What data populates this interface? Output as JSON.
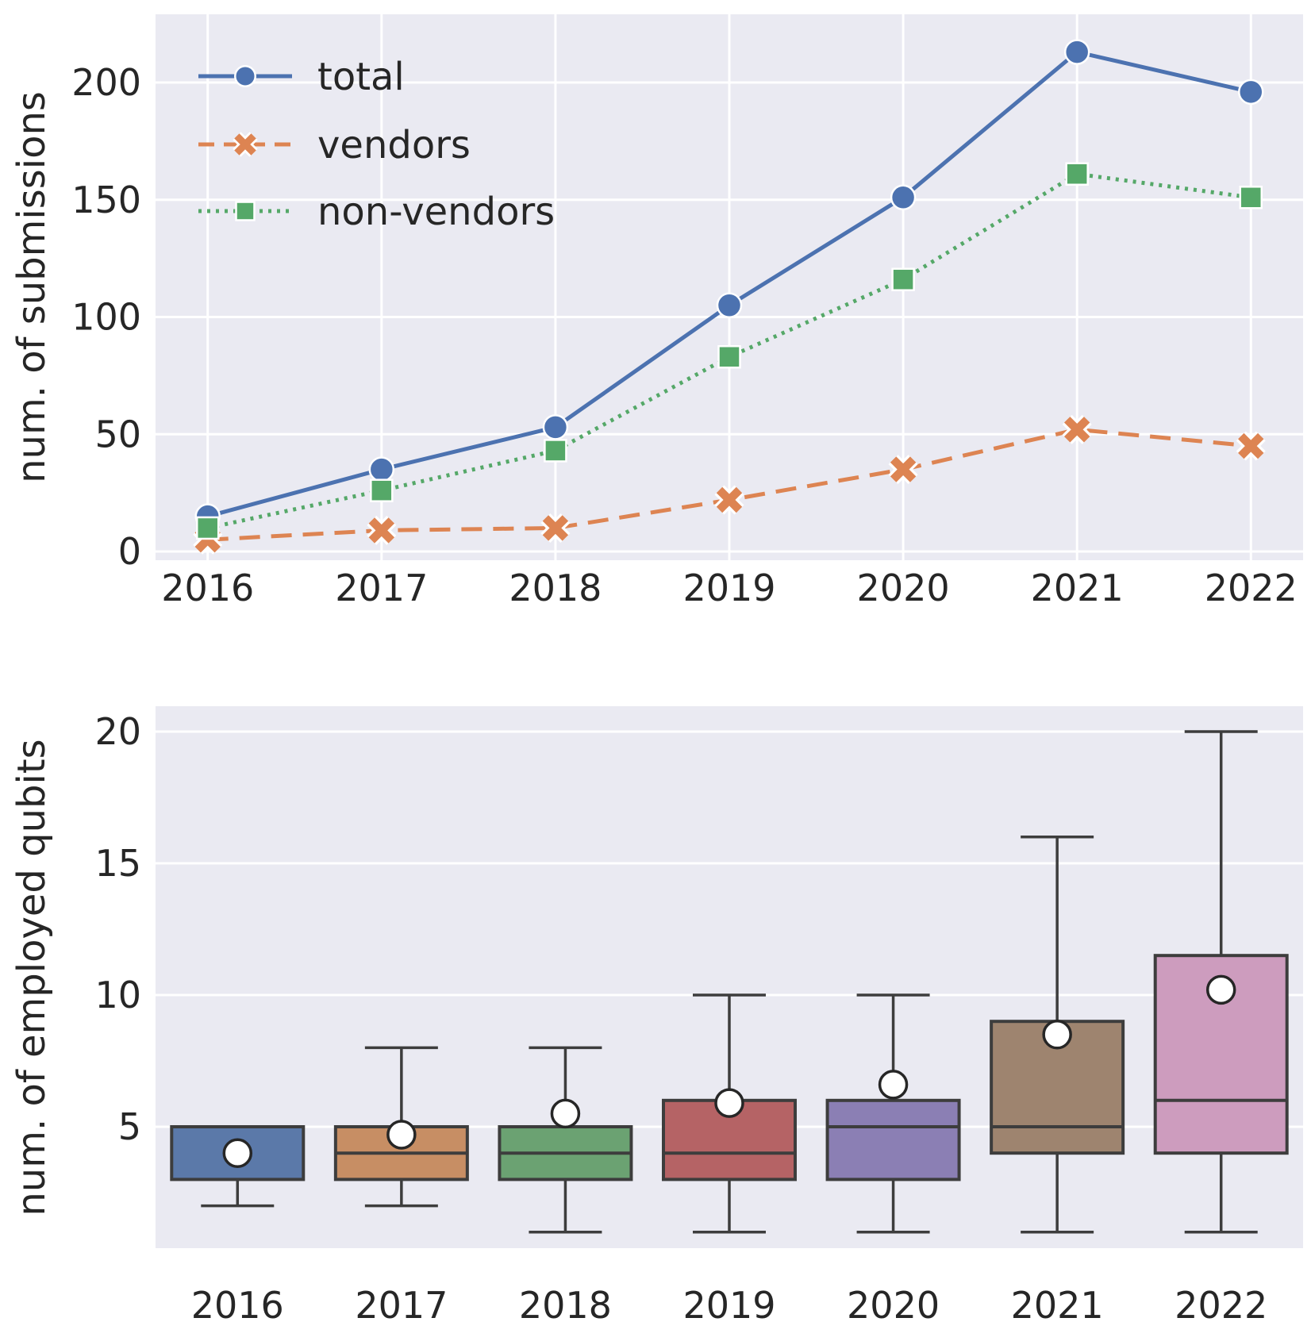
{
  "page": {
    "background": "#ffffff",
    "plot_background": "#eaeaf2",
    "grid_color": "#ffffff",
    "text_color": "#262626",
    "box_edge_color": "#3d3d3d"
  },
  "chart_data": [
    {
      "type": "line",
      "title": "",
      "xlabel": "",
      "ylabel": "num. of submissions",
      "categories": [
        "2016",
        "2017",
        "2018",
        "2019",
        "2020",
        "2021",
        "2022"
      ],
      "yticks": [
        0,
        50,
        100,
        150,
        200
      ],
      "ylim": [
        -4,
        229
      ],
      "grid": "both",
      "legend": {
        "position": "upper-left",
        "frame": false
      },
      "series": [
        {
          "name": "total",
          "color": "#4c72b0",
          "linestyle": "solid",
          "marker": "circle",
          "values": [
            15,
            35,
            53,
            105,
            151,
            213,
            196
          ]
        },
        {
          "name": "vendors",
          "color": "#dd8452",
          "linestyle": "dashed",
          "marker": "X",
          "values": [
            5,
            9,
            10,
            22,
            35,
            52,
            45
          ]
        },
        {
          "name": "non-vendors",
          "color": "#55a868",
          "linestyle": "dotted",
          "marker": "square",
          "values": [
            10,
            26,
            43,
            83,
            116,
            161,
            151
          ]
        }
      ]
    },
    {
      "type": "box",
      "title": "",
      "xlabel": "",
      "ylabel": "num. of employed qubits",
      "categories": [
        "2016",
        "2017",
        "2018",
        "2019",
        "2020",
        "2021",
        "2022"
      ],
      "yticks": [
        5,
        10,
        15,
        20
      ],
      "ylim": [
        0.4,
        21
      ],
      "grid": "horizontal",
      "mean_marker": {
        "shape": "circle",
        "fill": "#ffffff",
        "edge": "#262626"
      },
      "boxes": [
        {
          "year": "2016",
          "fill": "#5b79a9",
          "whisker_low": 2,
          "q1": 3,
          "median": null,
          "q3": 5,
          "whisker_high": 5,
          "mean": 4.0
        },
        {
          "year": "2017",
          "fill": "#c78e64",
          "whisker_low": 2,
          "q1": 3,
          "median": 4,
          "q3": 5,
          "whisker_high": 8,
          "mean": 4.7
        },
        {
          "year": "2018",
          "fill": "#6ba272",
          "whisker_low": 1,
          "q1": 3,
          "median": 4,
          "q3": 5,
          "whisker_high": 8,
          "mean": 5.5
        },
        {
          "year": "2019",
          "fill": "#b56365",
          "whisker_low": 1,
          "q1": 3,
          "median": 4,
          "q3": 6,
          "whisker_high": 10,
          "mean": 5.9
        },
        {
          "year": "2020",
          "fill": "#8b7fb4",
          "whisker_low": 1,
          "q1": 3,
          "median": 5,
          "q3": 6,
          "whisker_high": 10,
          "mean": 6.6
        },
        {
          "year": "2021",
          "fill": "#9e846f",
          "whisker_low": 1,
          "q1": 4,
          "median": 5,
          "q3": 9,
          "whisker_high": 16,
          "mean": 8.5
        },
        {
          "year": "2022",
          "fill": "#cd9cbe",
          "whisker_low": 1,
          "q1": 4,
          "median": 6,
          "q3": 11.5,
          "whisker_high": 20,
          "mean": 10.2
        }
      ]
    }
  ]
}
